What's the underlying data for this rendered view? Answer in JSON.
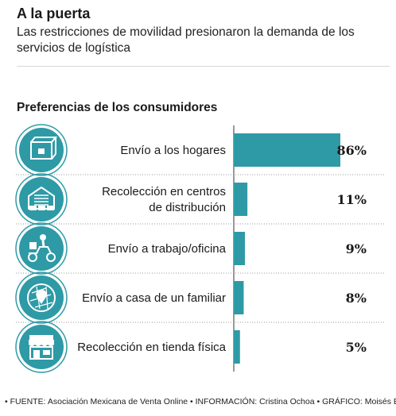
{
  "header": {
    "title": "A la puerta",
    "subtitle": "Las restricciones de movilidad presionaron la demanda de los servicios de logística"
  },
  "section_title": "Preferencias de los consumidores",
  "chart_data": {
    "type": "bar",
    "orientation": "horizontal",
    "title": "Preferencias de los consumidores",
    "categories": [
      [
        "Envío a los hogares"
      ],
      [
        "Recolección en centros",
        "de distribución"
      ],
      [
        "Envío a trabajo/oficina"
      ],
      [
        "Envío a casa de un familiar"
      ],
      [
        "Recolección en tienda física"
      ]
    ],
    "values": [
      86,
      11,
      9,
      8,
      5
    ],
    "value_labels": [
      "86%",
      "11%",
      "9%",
      "8%",
      "5%"
    ],
    "icons": [
      "package-box-icon",
      "warehouse-icon",
      "delivery-scooter-icon",
      "map-pin-icon",
      "storefront-icon"
    ],
    "unit": "%",
    "xlim": [
      0,
      86
    ],
    "bar_color": "#2e9aa6",
    "icon_circle_color": "#2e9aa6"
  },
  "footer": {
    "text": "• FUENTE: Asociación Mexicana de Venta Online • INFORMACIÓN: Cristina Ochoa • GRÁFICO: Moisés Butze"
  }
}
